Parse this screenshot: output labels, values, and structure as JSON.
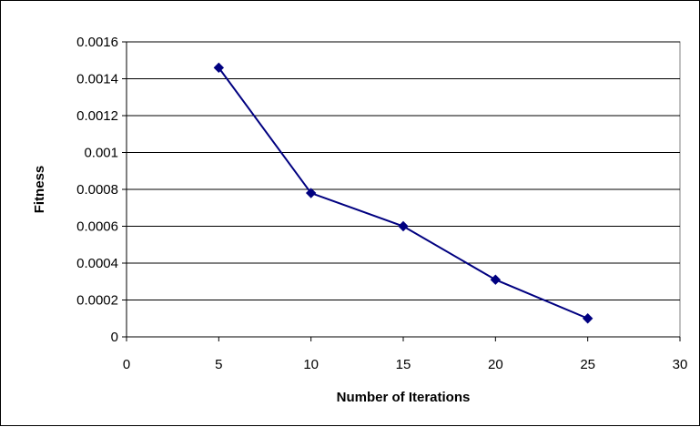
{
  "chart_data": {
    "type": "scatter",
    "title": "",
    "xlabel": "Number of Iterations",
    "ylabel": "Fitness",
    "xlim": [
      0,
      30
    ],
    "ylim": [
      0,
      0.0016
    ],
    "xticks": [
      0,
      5,
      10,
      15,
      20,
      25,
      30
    ],
    "xtick_labels": [
      "0",
      "5",
      "10",
      "15",
      "20",
      "25",
      "30"
    ],
    "yticks": [
      0,
      0.0002,
      0.0004,
      0.0006,
      0.0008,
      0.001,
      0.0012,
      0.0014,
      0.0016
    ],
    "ytick_labels": [
      "0",
      "0.0002",
      "0.0004",
      "0.0006",
      "0.0008",
      "0.001",
      "0.0012",
      "0.0014",
      "0.0016"
    ],
    "grid": "horizontal",
    "legend": "none",
    "series": [
      {
        "x": [
          5,
          10,
          15,
          20,
          25
        ],
        "y": [
          0.00146,
          0.00078,
          0.0006,
          0.00031,
          0.0001
        ],
        "color": "#000080",
        "marker": "diamond",
        "line": true
      }
    ]
  }
}
